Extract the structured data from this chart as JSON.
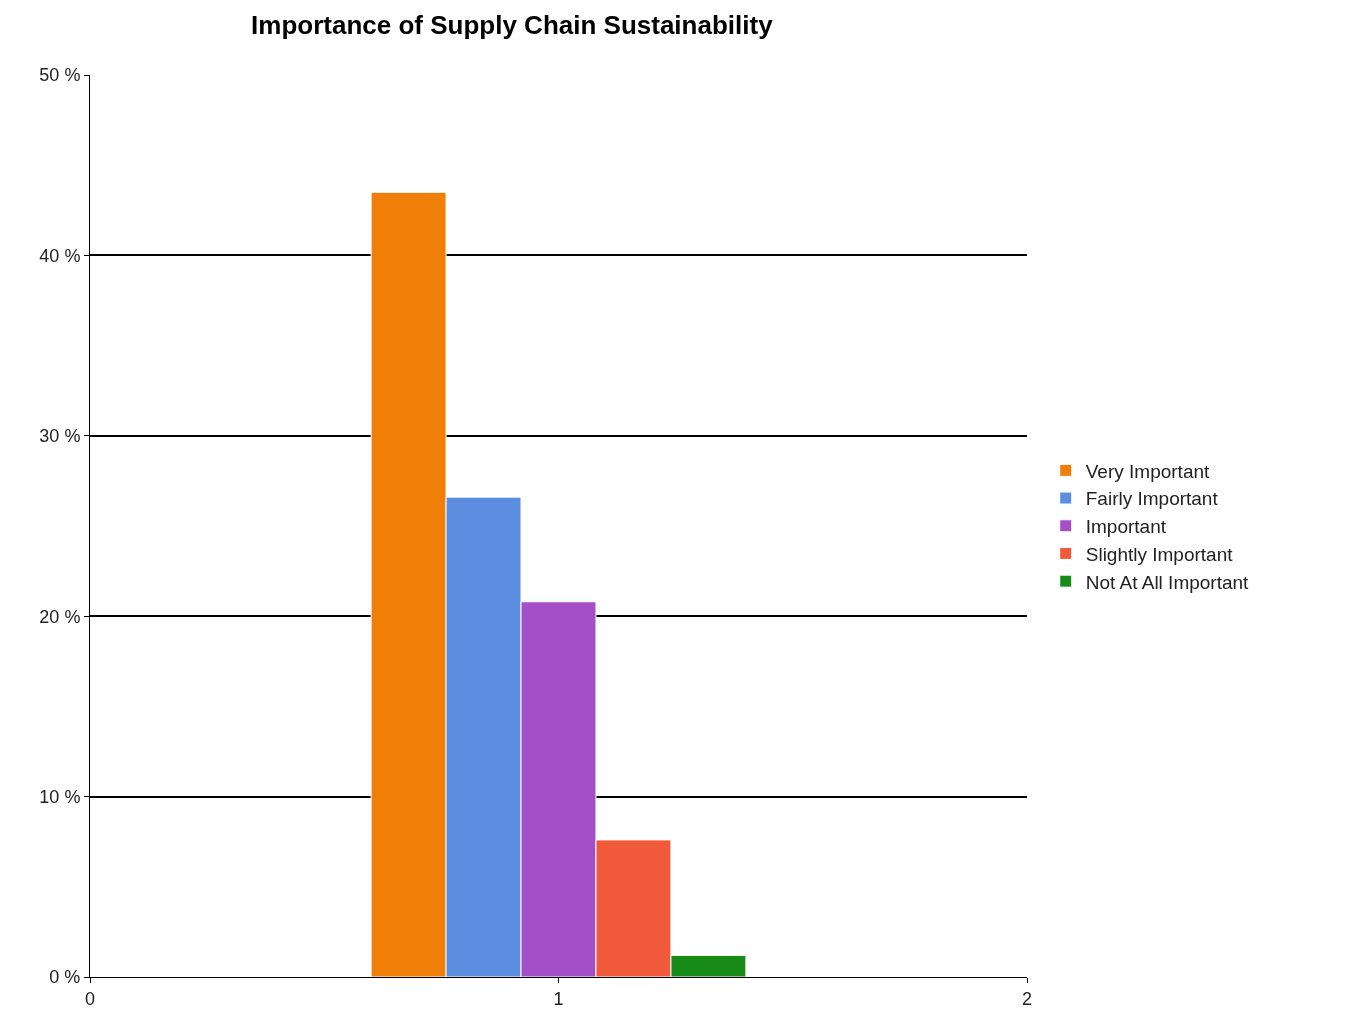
{
  "chart_data": {
    "type": "bar",
    "title": "Importance of Supply Chain Sustainability",
    "series": [
      {
        "name": "Very Important",
        "color": "#f07f09",
        "x": [
          0.68
        ],
        "values": [
          43.5
        ]
      },
      {
        "name": "Fairly Important",
        "color": "#5b8ee0",
        "x": [
          0.84
        ],
        "values": [
          26.6
        ]
      },
      {
        "name": "Important",
        "color": "#a44ec8",
        "x": [
          1.0
        ],
        "values": [
          20.8
        ]
      },
      {
        "name": "Slightly Important",
        "color": "#f05a3a",
        "x": [
          1.16
        ],
        "values": [
          7.6
        ]
      },
      {
        "name": "Not At All Important",
        "color": "#178a17",
        "x": [
          1.32
        ],
        "values": [
          1.2
        ]
      }
    ],
    "xlim": [
      0,
      2
    ],
    "xticks": [
      0,
      1,
      2
    ],
    "ylim": [
      0,
      50
    ],
    "yticks": [
      {
        "value": 0,
        "label": "0 %"
      },
      {
        "value": 10,
        "label": "10 %"
      },
      {
        "value": 20,
        "label": "20 %"
      },
      {
        "value": 30,
        "label": "30 %"
      },
      {
        "value": 40,
        "label": "40 %"
      },
      {
        "value": 50,
        "label": "50 %"
      }
    ],
    "grid": "y",
    "legend": "right"
  }
}
